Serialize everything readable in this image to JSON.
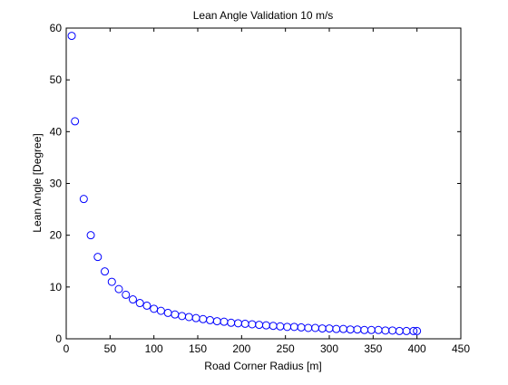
{
  "chart_data": {
    "type": "scatter",
    "title": "Lean Angle Validation 10 m/s",
    "xlabel": "Road Corner Radius [m]",
    "ylabel": "Lean Angle [Degree]",
    "xlim": [
      0,
      450
    ],
    "ylim": [
      0,
      60
    ],
    "xticks": [
      0,
      50,
      100,
      150,
      200,
      250,
      300,
      350,
      400,
      450
    ],
    "yticks": [
      0,
      10,
      20,
      30,
      40,
      50,
      60
    ],
    "grid": false,
    "marker": "circle-open",
    "marker_color": "#0000ff",
    "series": [
      {
        "x": [
          6.25,
          10,
          20,
          28,
          36,
          44,
          52,
          60,
          68,
          76,
          84,
          92,
          100,
          108,
          116,
          124,
          132,
          140,
          148,
          156,
          164,
          172,
          180,
          188,
          196,
          204,
          212,
          220,
          228,
          236,
          244,
          252,
          260,
          268,
          276,
          284,
          292,
          300,
          308,
          316,
          324,
          332,
          340,
          348,
          356,
          364,
          372,
          380,
          388,
          396,
          400
        ],
        "y": [
          58.5,
          42,
          27,
          20,
          15.8,
          13,
          11,
          9.6,
          8.5,
          7.6,
          6.9,
          6.4,
          5.8,
          5.4,
          5.0,
          4.7,
          4.4,
          4.2,
          4.0,
          3.8,
          3.6,
          3.4,
          3.3,
          3.1,
          3.0,
          2.9,
          2.8,
          2.7,
          2.6,
          2.5,
          2.4,
          2.3,
          2.3,
          2.2,
          2.1,
          2.1,
          2.0,
          2.0,
          1.9,
          1.9,
          1.8,
          1.8,
          1.7,
          1.7,
          1.7,
          1.6,
          1.6,
          1.5,
          1.5,
          1.5,
          1.5
        ]
      }
    ]
  }
}
